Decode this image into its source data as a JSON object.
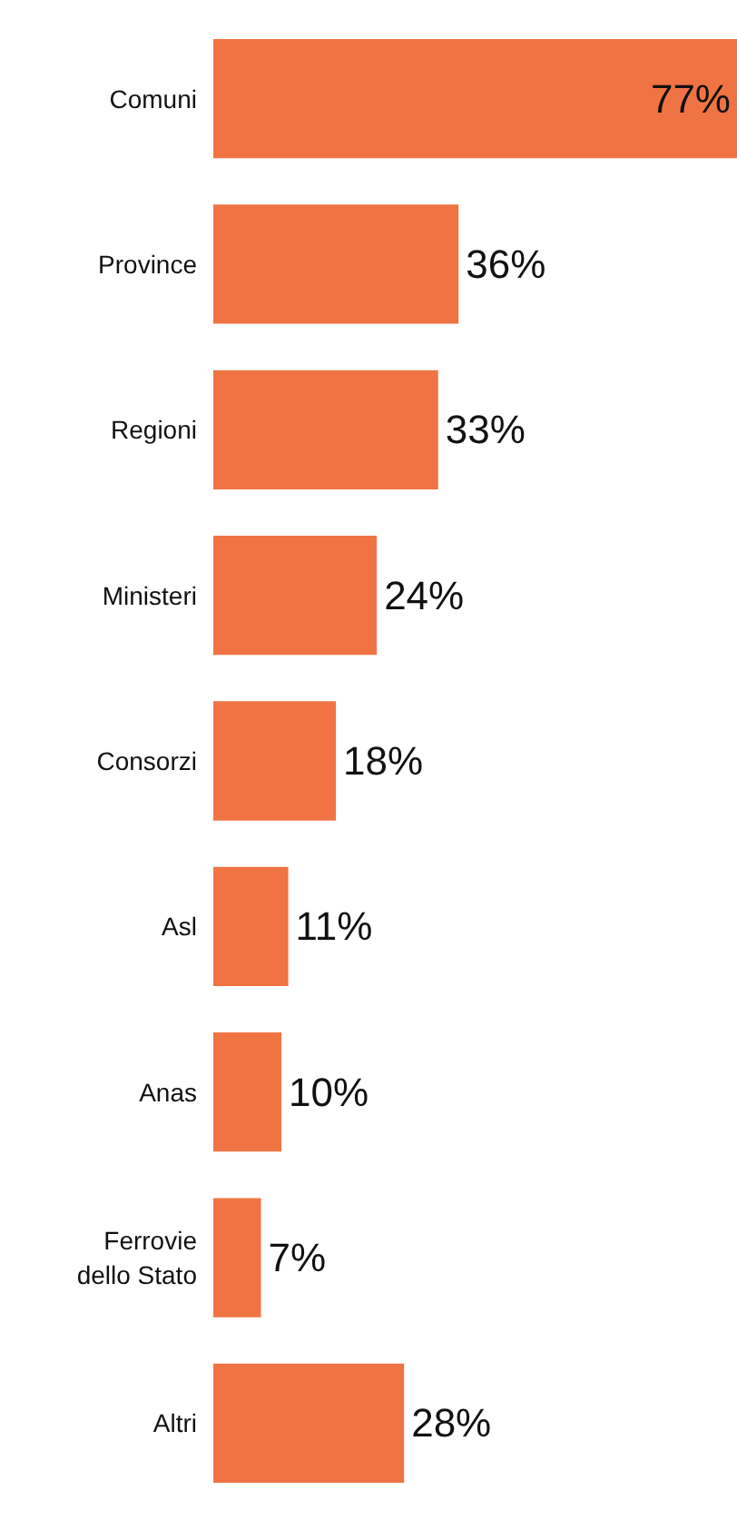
{
  "chart_data": {
    "type": "bar",
    "orientation": "horizontal",
    "categories": [
      "Comuni",
      "Province",
      "Regioni",
      "Ministeri",
      "Consorzi",
      "Asl",
      "Anas",
      "Ferrovie\ndello Stato",
      "Altri"
    ],
    "values": [
      77,
      36,
      33,
      24,
      18,
      11,
      10,
      7,
      28
    ],
    "color": "#f07443",
    "value_labels": [
      "77%",
      "36%",
      "33%",
      "24%",
      "18%",
      "11%",
      "10%",
      "7%",
      "28%"
    ]
  }
}
